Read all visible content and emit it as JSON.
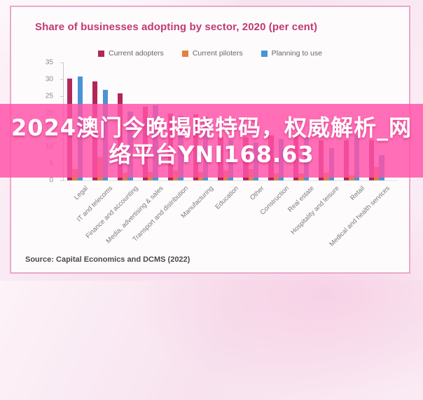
{
  "source": "Source: Capital Economics and DCMS (2022)",
  "overlay": {
    "line1": "2024澳门今晚揭晓特码，权威解析_网",
    "line2": "络平台YNI168.63"
  },
  "colors": {
    "title": "#c13a72",
    "card_border": "#e9a8cd",
    "overlay_pink": "#ff52a8",
    "adopters": "#b2265a",
    "piloters": "#e3813b",
    "planning": "#4b93d5"
  },
  "chart_data": {
    "type": "bar",
    "title": "Share of businesses adopting by sector, 2020 (per cent)",
    "xlabel": "",
    "ylabel": "",
    "ylim": [
      0,
      35
    ],
    "y_ticks": [
      0,
      5,
      10,
      15,
      20,
      25,
      30,
      35
    ],
    "grid": false,
    "legend_position": "top",
    "categories": [
      "Legal",
      "IT and telecoms",
      "Finance and accounting",
      "Media, advertising & sales",
      "Transport and distribution",
      "Manufacturing",
      "Education",
      "Other",
      "Construction",
      "Real estate",
      "Hospitality and leisure",
      "Retail",
      "Medical and health services"
    ],
    "series": [
      {
        "name": "Current adopters",
        "color": "#b2265a",
        "values": [
          30.3,
          29.3,
          25.8,
          21.9,
          19.8,
          19.6,
          12.9,
          12.7,
          13.3,
          14.0,
          11.9,
          11.9,
          11.9
        ]
      },
      {
        "name": "Current piloters",
        "color": "#e3813b",
        "values": [
          3.3,
          6.9,
          2.3,
          2.5,
          2.9,
          2.5,
          2.9,
          3.3,
          2.0,
          2.0,
          2.3,
          1.5,
          4.0
        ]
      },
      {
        "name": "Planning to use",
        "color": "#4b93d5",
        "values": [
          30.9,
          26.9,
          20.4,
          22.3,
          19.2,
          19.0,
          11.9,
          11.2,
          12.3,
          13.0,
          9.6,
          13.4,
          7.5
        ]
      }
    ]
  }
}
